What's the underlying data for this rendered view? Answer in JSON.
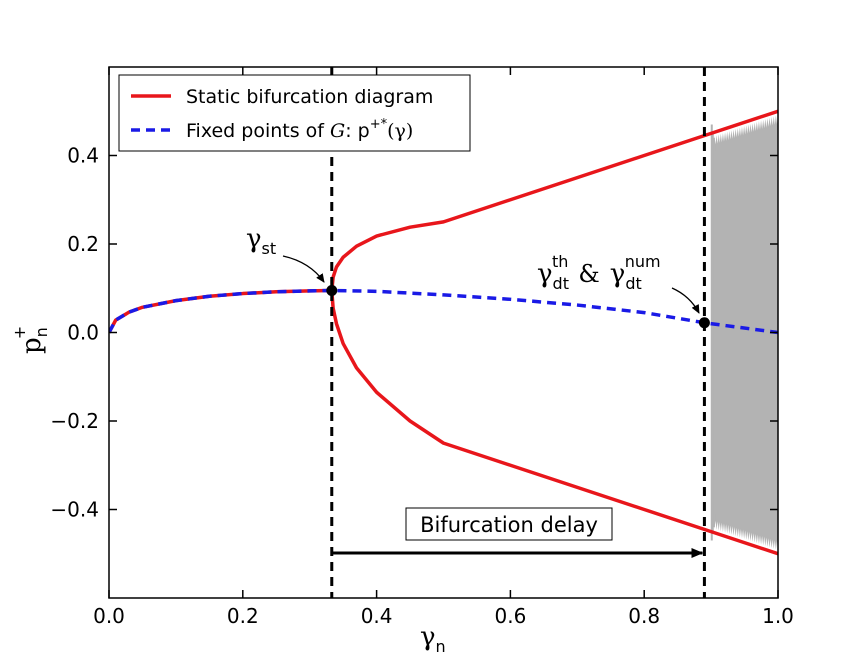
{
  "chart_data": {
    "type": "line",
    "title": "",
    "xlabel": {
      "base": "γ",
      "sub": "n"
    },
    "ylabel": {
      "base": "p",
      "sub": "n",
      "sup": "+"
    },
    "xlim": [
      0.0,
      1.0
    ],
    "ylim": [
      -0.6,
      0.6
    ],
    "x_ticks": [
      0.0,
      0.2,
      0.4,
      0.6,
      0.8,
      1.0
    ],
    "x_tick_labels": [
      "0.0",
      "0.2",
      "0.4",
      "0.6",
      "0.8",
      "1.0"
    ],
    "y_ticks": [
      -0.4,
      -0.2,
      0.0,
      0.2,
      0.4
    ],
    "y_tick_labels": [
      "−0.4",
      "−0.2",
      "0.0",
      "0.2",
      "0.4"
    ],
    "grid": false,
    "legend": {
      "placement": "top-left",
      "entries": [
        {
          "label": "Static bifurcation diagram",
          "color": "#e8161b",
          "style": "solid"
        },
        {
          "label": "Fixed points of G: p⁺*(γ)",
          "label_main": "Fixed points of ",
          "label_G": "G",
          "label_p": ": p",
          "label_sup": "+*",
          "label_arg": "(γ)",
          "color": "#1a1ae6",
          "style": "dashed"
        }
      ]
    },
    "gamma_st": 0.333,
    "gamma_dt": 0.89,
    "fixed_point_values": {
      "gamma_st": 0.095,
      "gamma_dt": 0.022
    },
    "series": [
      {
        "name": "Static bifurcation diagram (fixed branch)",
        "color": "#e8161b",
        "x": [
          0.0,
          0.01,
          0.03,
          0.05,
          0.1,
          0.15,
          0.2,
          0.25,
          0.3,
          0.333
        ],
        "y": [
          0.0,
          0.028,
          0.046,
          0.057,
          0.072,
          0.082,
          0.088,
          0.092,
          0.094,
          0.095
        ]
      },
      {
        "name": "Static bifurcation diagram (upper branch)",
        "color": "#e8161b",
        "x": [
          0.333,
          0.335,
          0.34,
          0.35,
          0.37,
          0.4,
          0.45,
          0.5,
          0.6,
          0.7,
          0.8,
          0.9,
          1.0
        ],
        "y": [
          0.095,
          0.125,
          0.148,
          0.17,
          0.195,
          0.218,
          0.238,
          0.25,
          0.3,
          0.35,
          0.4,
          0.45,
          0.5
        ]
      },
      {
        "name": "Static bifurcation diagram (lower branch)",
        "color": "#e8161b",
        "x": [
          0.333,
          0.335,
          0.34,
          0.35,
          0.37,
          0.4,
          0.45,
          0.5,
          0.6,
          0.7,
          0.8,
          0.9,
          1.0
        ],
        "y": [
          0.095,
          0.055,
          0.02,
          -0.025,
          -0.08,
          -0.135,
          -0.2,
          -0.25,
          -0.3,
          -0.35,
          -0.4,
          -0.45,
          -0.5
        ]
      },
      {
        "name": "Fixed points of G",
        "color": "#1a1ae6",
        "x": [
          0.0,
          0.01,
          0.03,
          0.05,
          0.1,
          0.15,
          0.2,
          0.25,
          0.3,
          0.333,
          0.4,
          0.5,
          0.6,
          0.7,
          0.8,
          0.89,
          1.0
        ],
        "y": [
          0.0,
          0.028,
          0.046,
          0.057,
          0.072,
          0.082,
          0.088,
          0.092,
          0.094,
          0.095,
          0.093,
          0.085,
          0.075,
          0.062,
          0.045,
          0.022,
          0.0
        ]
      }
    ],
    "oscillation_region": {
      "color": "#b3b3b3",
      "x_start": 0.905,
      "x_end": 1.0
    },
    "annotations": {
      "gamma_st_label": {
        "base": "γ",
        "sub": "st"
      },
      "gamma_dt_label": {
        "base1": "γ",
        "sub1": "dt",
        "sup1": "th",
        "amp": "&",
        "base2": "γ",
        "sub2": "dt",
        "sup2": "num"
      },
      "delay_label": "Bifurcation delay"
    }
  }
}
